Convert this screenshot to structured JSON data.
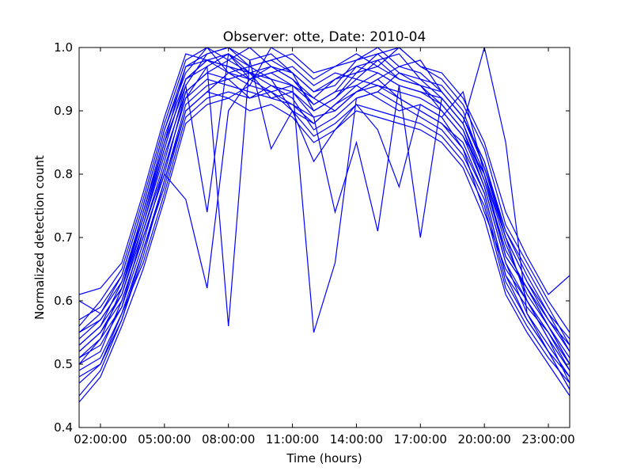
{
  "chart_data": {
    "type": "line",
    "title": "Observer: otte, Date: 2010-04",
    "xlabel": "Time (hours)",
    "ylabel": "Normalized detection count",
    "xlim": [
      1,
      24
    ],
    "ylim": [
      0.4,
      1.0
    ],
    "xticks": [
      2,
      5,
      8,
      11,
      14,
      17,
      20,
      23
    ],
    "xtick_labels": [
      "02:00:00",
      "05:00:00",
      "08:00:00",
      "11:00:00",
      "14:00:00",
      "17:00:00",
      "20:00:00",
      "23:00:00"
    ],
    "yticks": [
      0.4,
      0.5,
      0.6,
      0.7,
      0.8,
      0.9,
      1.0
    ],
    "ytick_labels": [
      "0.4",
      "0.5",
      "0.6",
      "0.7",
      "0.8",
      "0.9",
      "1.0"
    ],
    "grid": false,
    "line_color": "#0000ff",
    "x": [
      1,
      2,
      3,
      4,
      5,
      6,
      7,
      8,
      9,
      10,
      11,
      12,
      13,
      14,
      15,
      16,
      17,
      18,
      19,
      20,
      21,
      22,
      23,
      24
    ],
    "series": [
      {
        "values": [
          0.52,
          0.55,
          0.6,
          0.7,
          0.8,
          0.93,
          0.96,
          0.95,
          0.92,
          0.94,
          0.93,
          0.9,
          0.92,
          0.95,
          0.94,
          0.93,
          0.92,
          0.9,
          0.86,
          0.8,
          0.7,
          0.6,
          0.55,
          0.5
        ]
      },
      {
        "values": [
          0.5,
          0.54,
          0.62,
          0.72,
          0.84,
          0.95,
          0.98,
          0.97,
          0.95,
          0.96,
          0.94,
          0.92,
          0.95,
          0.96,
          0.97,
          0.95,
          0.94,
          0.91,
          0.87,
          0.78,
          0.66,
          0.58,
          0.53,
          0.48
        ]
      },
      {
        "values": [
          0.55,
          0.58,
          0.64,
          0.75,
          0.87,
          0.96,
          1.0,
          0.98,
          0.96,
          0.97,
          0.95,
          0.91,
          0.93,
          0.97,
          0.96,
          0.94,
          0.93,
          0.92,
          0.88,
          0.79,
          0.68,
          0.62,
          0.56,
          0.5
        ]
      },
      {
        "values": [
          0.48,
          0.5,
          0.58,
          0.68,
          0.78,
          0.9,
          0.93,
          0.96,
          0.97,
          0.95,
          0.9,
          0.88,
          0.91,
          0.94,
          0.92,
          0.9,
          0.91,
          0.89,
          0.84,
          0.74,
          0.65,
          0.6,
          0.54,
          0.47
        ]
      },
      {
        "values": [
          0.53,
          0.56,
          0.61,
          0.71,
          0.82,
          0.94,
          0.99,
          1.0,
          0.98,
          0.99,
          0.96,
          0.93,
          0.94,
          0.98,
          1.0,
          0.97,
          0.96,
          0.93,
          0.89,
          0.82,
          0.7,
          0.63,
          0.57,
          0.52
        ]
      },
      {
        "values": [
          0.51,
          0.53,
          0.59,
          0.69,
          0.81,
          0.92,
          0.95,
          0.94,
          0.93,
          0.92,
          0.91,
          0.89,
          0.9,
          0.93,
          0.95,
          0.92,
          0.9,
          0.88,
          0.85,
          0.77,
          0.64,
          0.59,
          0.55,
          0.49
        ]
      },
      {
        "values": [
          0.6,
          0.58,
          0.63,
          0.73,
          0.85,
          0.97,
          0.98,
          0.99,
          0.95,
          0.96,
          0.97,
          0.94,
          0.96,
          0.95,
          0.98,
          0.99,
          0.95,
          0.94,
          0.9,
          0.81,
          0.71,
          0.64,
          0.58,
          0.54
        ]
      },
      {
        "values": [
          0.45,
          0.49,
          0.57,
          0.67,
          0.79,
          0.91,
          0.94,
          0.95,
          0.96,
          0.94,
          0.92,
          0.87,
          0.89,
          0.92,
          0.93,
          0.91,
          0.89,
          0.87,
          0.83,
          0.76,
          0.63,
          0.57,
          0.52,
          0.46
        ]
      },
      {
        "values": [
          0.56,
          0.6,
          0.65,
          0.76,
          0.88,
          0.98,
          1.0,
          0.96,
          0.94,
          1.0,
          0.98,
          0.95,
          0.97,
          0.99,
          0.97,
          1.0,
          0.97,
          0.95,
          0.91,
          0.84,
          0.72,
          0.66,
          0.6,
          0.55
        ]
      },
      {
        "values": [
          0.49,
          0.51,
          0.58,
          0.66,
          0.77,
          0.89,
          0.92,
          0.93,
          0.92,
          0.93,
          0.9,
          0.86,
          0.88,
          0.91,
          0.9,
          0.89,
          0.88,
          0.86,
          0.82,
          0.75,
          0.62,
          0.56,
          0.51,
          0.47
        ]
      },
      {
        "values": [
          0.54,
          0.57,
          0.62,
          0.74,
          0.86,
          0.95,
          0.97,
          0.99,
          0.97,
          0.98,
          0.96,
          0.9,
          0.92,
          0.96,
          0.99,
          0.96,
          0.95,
          0.92,
          0.88,
          0.8,
          0.69,
          0.61,
          0.56,
          0.51
        ]
      },
      {
        "values": [
          0.61,
          0.62,
          0.66,
          0.77,
          0.89,
          0.99,
          0.98,
          0.97,
          0.96,
          0.95,
          0.94,
          0.91,
          0.93,
          0.94,
          0.96,
          0.94,
          0.93,
          0.91,
          0.87,
          0.79,
          0.67,
          0.62,
          0.57,
          0.53
        ]
      },
      {
        "values": [
          0.44,
          0.48,
          0.56,
          0.65,
          0.76,
          0.88,
          0.91,
          0.92,
          0.9,
          0.91,
          0.89,
          0.85,
          0.87,
          0.9,
          0.89,
          0.88,
          0.87,
          0.85,
          0.81,
          0.73,
          0.61,
          0.55,
          0.5,
          0.45
        ]
      },
      {
        "values": [
          0.52,
          0.55,
          0.61,
          0.72,
          0.83,
          0.93,
          0.96,
          0.98,
          1.0,
          0.97,
          0.95,
          0.92,
          0.9,
          0.93,
          0.95,
          0.97,
          0.98,
          0.93,
          0.89,
          0.81,
          0.7,
          0.63,
          0.58,
          0.52
        ]
      },
      {
        "values": [
          0.5,
          0.52,
          0.6,
          0.7,
          0.8,
          0.76,
          0.62,
          0.9,
          0.95,
          0.93,
          0.94,
          0.55,
          0.66,
          0.92,
          0.93,
          0.96,
          0.94,
          0.9,
          0.86,
          0.78,
          0.66,
          0.6,
          0.54,
          0.49
        ]
      },
      {
        "values": [
          0.53,
          0.56,
          0.63,
          0.74,
          0.85,
          0.94,
          0.74,
          0.99,
          0.96,
          0.92,
          0.93,
          0.89,
          0.74,
          0.85,
          0.71,
          0.94,
          0.7,
          0.92,
          0.88,
          1.0,
          0.85,
          0.58,
          0.52,
          0.48
        ]
      },
      {
        "values": [
          0.51,
          0.54,
          0.59,
          0.71,
          0.81,
          0.92,
          0.97,
          0.56,
          0.98,
          0.84,
          0.9,
          0.82,
          0.87,
          0.91,
          0.87,
          0.78,
          0.91,
          0.89,
          0.93,
          0.8,
          0.67,
          0.62,
          0.56,
          0.5
        ]
      },
      {
        "values": [
          0.57,
          0.59,
          0.64,
          0.75,
          0.87,
          0.97,
          0.99,
          1.0,
          0.97,
          0.98,
          0.99,
          0.96,
          0.97,
          0.98,
          0.99,
          1.0,
          0.97,
          0.96,
          0.92,
          0.85,
          0.74,
          0.67,
          0.61,
          0.64
        ]
      },
      {
        "values": [
          0.47,
          0.5,
          0.57,
          0.68,
          0.79,
          0.9,
          0.93,
          0.92,
          0.94,
          0.93,
          0.91,
          0.88,
          0.91,
          0.93,
          0.94,
          0.92,
          0.9,
          0.88,
          0.84,
          0.77,
          0.64,
          0.57,
          0.52,
          0.46
        ]
      },
      {
        "values": [
          0.55,
          0.57,
          0.62,
          0.73,
          0.84,
          0.95,
          0.98,
          0.96,
          0.95,
          0.97,
          0.96,
          0.93,
          0.95,
          0.97,
          0.98,
          0.95,
          0.94,
          0.93,
          0.89,
          0.82,
          0.71,
          0.65,
          0.59,
          0.53
        ]
      }
    ]
  }
}
